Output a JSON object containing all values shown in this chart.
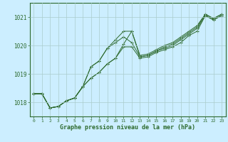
{
  "bg_color": "#cceeff",
  "grid_color": "#aacccc",
  "line_color": "#2d6a2d",
  "xlabel": "Graphe pression niveau de la mer (hPa)",
  "xlim": [
    -0.5,
    23.5
  ],
  "ylim": [
    1017.5,
    1021.5
  ],
  "yticks": [
    1018,
    1019,
    1020,
    1021
  ],
  "xticks": [
    0,
    1,
    2,
    3,
    4,
    5,
    6,
    7,
    8,
    9,
    10,
    11,
    12,
    13,
    14,
    15,
    16,
    17,
    18,
    19,
    20,
    21,
    22,
    23
  ],
  "series": [
    [
      1018.3,
      1018.3,
      1017.8,
      1017.85,
      1018.05,
      1018.15,
      1018.55,
      1018.85,
      1019.05,
      1019.35,
      1019.55,
      1019.95,
      1019.95,
      1019.55,
      1019.6,
      1019.75,
      1019.85,
      1019.95,
      1020.1,
      1020.35,
      1020.5,
      1021.05,
      1020.9,
      1021.05
    ],
    [
      1018.3,
      1018.3,
      1017.8,
      1017.85,
      1018.05,
      1018.15,
      1018.55,
      1018.85,
      1019.05,
      1019.35,
      1019.55,
      1020.05,
      1020.5,
      1019.6,
      1019.65,
      1019.8,
      1019.95,
      1020.05,
      1020.25,
      1020.45,
      1020.65,
      1021.1,
      1020.95,
      1021.1
    ],
    [
      1018.3,
      1018.3,
      1017.8,
      1017.85,
      1018.05,
      1018.15,
      1018.55,
      1019.25,
      1019.45,
      1019.9,
      1020.1,
      1020.3,
      1020.1,
      1019.6,
      1019.65,
      1019.8,
      1019.9,
      1020.0,
      1020.2,
      1020.4,
      1020.6,
      1021.05,
      1020.9,
      1021.05
    ],
    [
      1018.3,
      1018.3,
      1017.8,
      1017.85,
      1018.05,
      1018.15,
      1018.55,
      1019.25,
      1019.45,
      1019.9,
      1020.2,
      1020.5,
      1020.5,
      1019.65,
      1019.7,
      1019.85,
      1020.0,
      1020.1,
      1020.3,
      1020.5,
      1020.7,
      1021.1,
      1020.95,
      1021.1
    ]
  ]
}
